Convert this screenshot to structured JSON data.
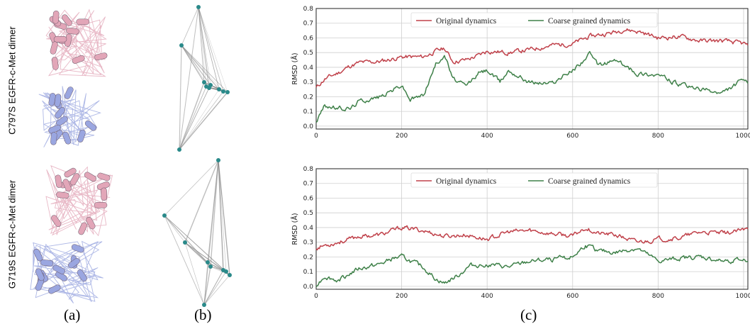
{
  "panel_labels": {
    "a": "(a)",
    "b": "(b)",
    "c": "(c)"
  },
  "row_labels": {
    "top": "C797S EGFR-c-Met dimer",
    "bottom": "G719S EGFR-c-Met dimer"
  },
  "colors": {
    "original": "#c0414a",
    "coarse": "#3e8048",
    "protein_pink": "#e2a6b8",
    "protein_blue": "#9aa6e0",
    "graph_node": "#2a8a8a",
    "graph_edge": "#8a8a8a",
    "grid": "#cfcfcf"
  },
  "chart_data": [
    {
      "type": "line",
      "ylabel": "RMSD (Å)",
      "xlabel": "",
      "xlim": [
        0,
        1010
      ],
      "ylim": [
        -0.02,
        0.8
      ],
      "xticks": [
        "0",
        "200",
        "400",
        "600",
        "800",
        "1000"
      ],
      "yticks": [
        "0.0",
        "0.1",
        "0.2",
        "0.3",
        "0.4",
        "0.5",
        "0.6",
        "0.7",
        "0.8"
      ],
      "grid": true,
      "legend_position": "top-center",
      "series": [
        {
          "name": "Original dynamics",
          "x": [
            0,
            20,
            50,
            80,
            100,
            150,
            200,
            250,
            280,
            300,
            320,
            350,
            380,
            400,
            450,
            500,
            550,
            600,
            640,
            680,
            700,
            720,
            760,
            800,
            850,
            900,
            950,
            1000,
            1010
          ],
          "y": [
            0.26,
            0.32,
            0.36,
            0.41,
            0.43,
            0.44,
            0.47,
            0.47,
            0.51,
            0.53,
            0.44,
            0.45,
            0.48,
            0.51,
            0.5,
            0.52,
            0.55,
            0.56,
            0.61,
            0.63,
            0.64,
            0.66,
            0.64,
            0.6,
            0.61,
            0.58,
            0.58,
            0.56,
            0.55
          ]
        },
        {
          "name": "Coarse grained dynamics",
          "x": [
            0,
            20,
            50,
            80,
            100,
            150,
            200,
            220,
            250,
            280,
            300,
            320,
            350,
            380,
            400,
            430,
            450,
            500,
            550,
            600,
            640,
            660,
            700,
            750,
            800,
            850,
            900,
            950,
            1000,
            1010
          ],
          "y": [
            0.03,
            0.14,
            0.12,
            0.12,
            0.17,
            0.2,
            0.28,
            0.18,
            0.21,
            0.42,
            0.49,
            0.32,
            0.27,
            0.36,
            0.38,
            0.3,
            0.38,
            0.3,
            0.29,
            0.38,
            0.49,
            0.41,
            0.45,
            0.36,
            0.35,
            0.28,
            0.25,
            0.22,
            0.32,
            0.29
          ]
        }
      ]
    },
    {
      "type": "line",
      "ylabel": "RMSD (Å)",
      "xlabel": "",
      "xlim": [
        0,
        1010
      ],
      "ylim": [
        -0.02,
        0.8
      ],
      "xticks": [
        "0",
        "200",
        "400",
        "600",
        "800",
        "1000"
      ],
      "yticks": [
        "0.0",
        "0.1",
        "0.2",
        "0.3",
        "0.4",
        "0.5",
        "0.6",
        "0.7",
        "0.8"
      ],
      "grid": true,
      "legend_position": "top-center",
      "series": [
        {
          "name": "Original dynamics",
          "x": [
            0,
            20,
            50,
            80,
            100,
            150,
            200,
            250,
            300,
            350,
            400,
            450,
            500,
            550,
            600,
            630,
            660,
            700,
            750,
            800,
            850,
            900,
            950,
            1000,
            1010
          ],
          "y": [
            0.26,
            0.28,
            0.3,
            0.32,
            0.34,
            0.35,
            0.4,
            0.38,
            0.34,
            0.35,
            0.32,
            0.37,
            0.38,
            0.36,
            0.34,
            0.4,
            0.36,
            0.35,
            0.3,
            0.32,
            0.33,
            0.37,
            0.36,
            0.38,
            0.39
          ]
        },
        {
          "name": "Coarse grained dynamics",
          "x": [
            0,
            20,
            50,
            80,
            100,
            150,
            180,
            200,
            250,
            280,
            300,
            330,
            360,
            400,
            450,
            500,
            550,
            600,
            630,
            660,
            700,
            750,
            800,
            850,
            900,
            950,
            1000,
            1010
          ],
          "y": [
            0.01,
            0.07,
            0.04,
            0.09,
            0.12,
            0.15,
            0.19,
            0.2,
            0.13,
            0.05,
            0.02,
            0.07,
            0.14,
            0.15,
            0.13,
            0.17,
            0.18,
            0.2,
            0.28,
            0.24,
            0.23,
            0.26,
            0.17,
            0.19,
            0.2,
            0.17,
            0.18,
            0.17
          ]
        }
      ]
    }
  ]
}
